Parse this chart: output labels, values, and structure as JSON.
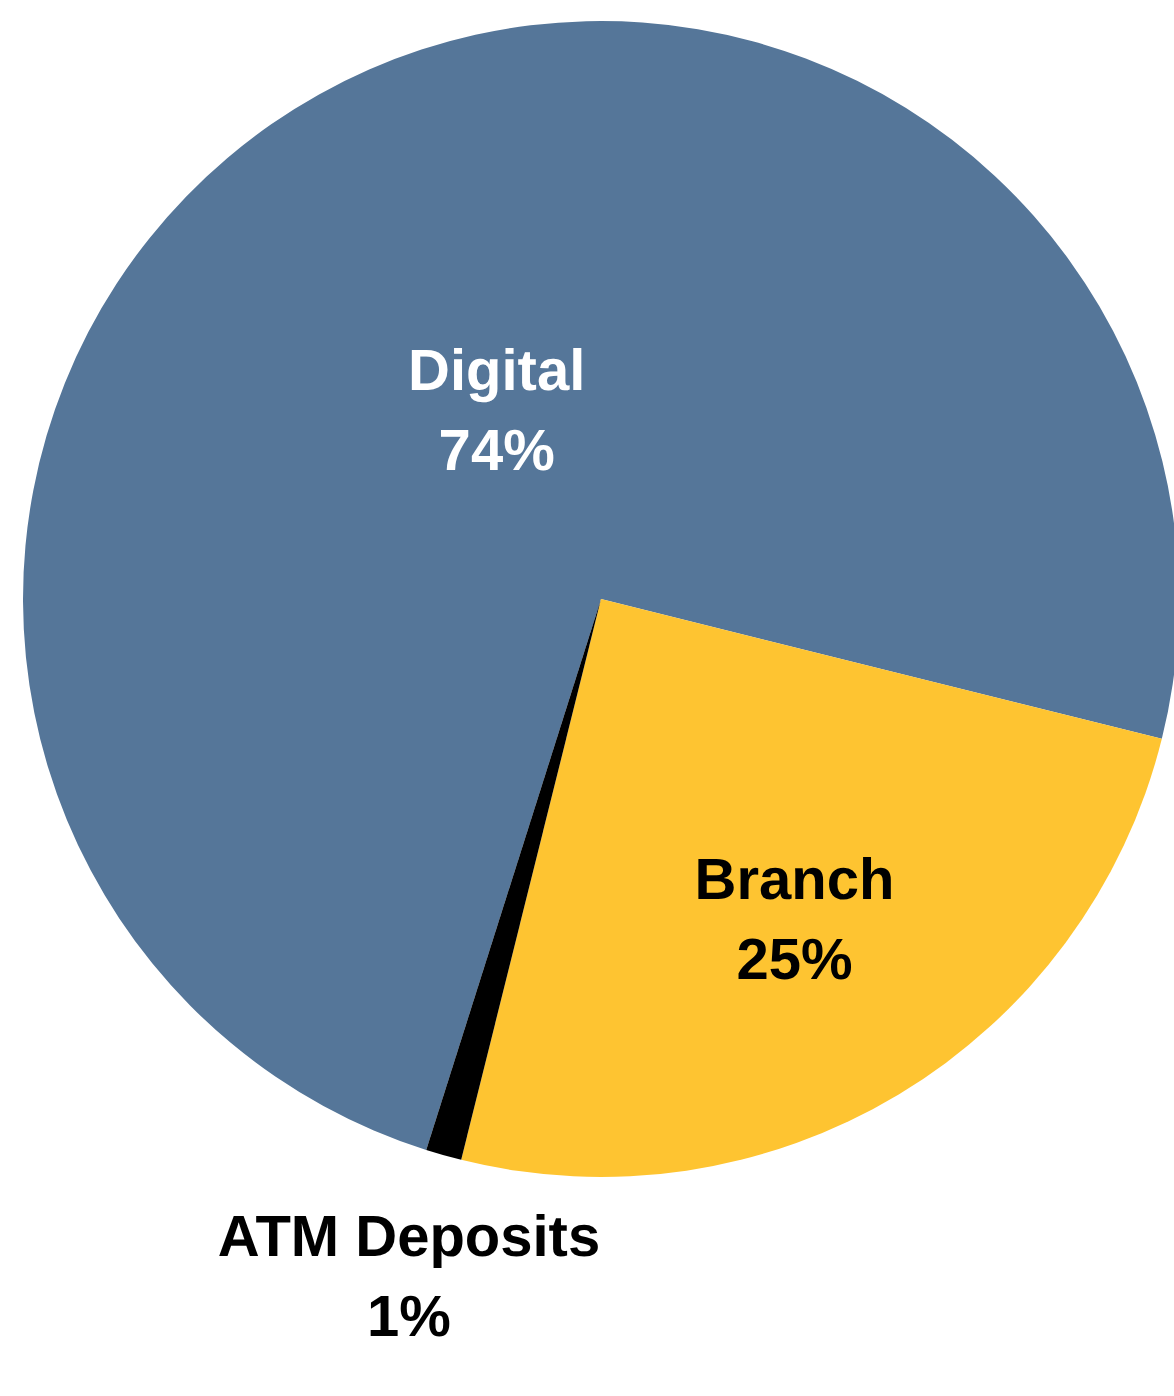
{
  "chart_data": {
    "type": "pie",
    "categories": [
      "Digital",
      "Branch",
      "ATM Deposits"
    ],
    "values": [
      74,
      25,
      1
    ],
    "colors": [
      "#557699",
      "#fec431",
      "#000000"
    ],
    "value_labels": [
      "74%",
      "25%",
      "1%"
    ]
  }
}
